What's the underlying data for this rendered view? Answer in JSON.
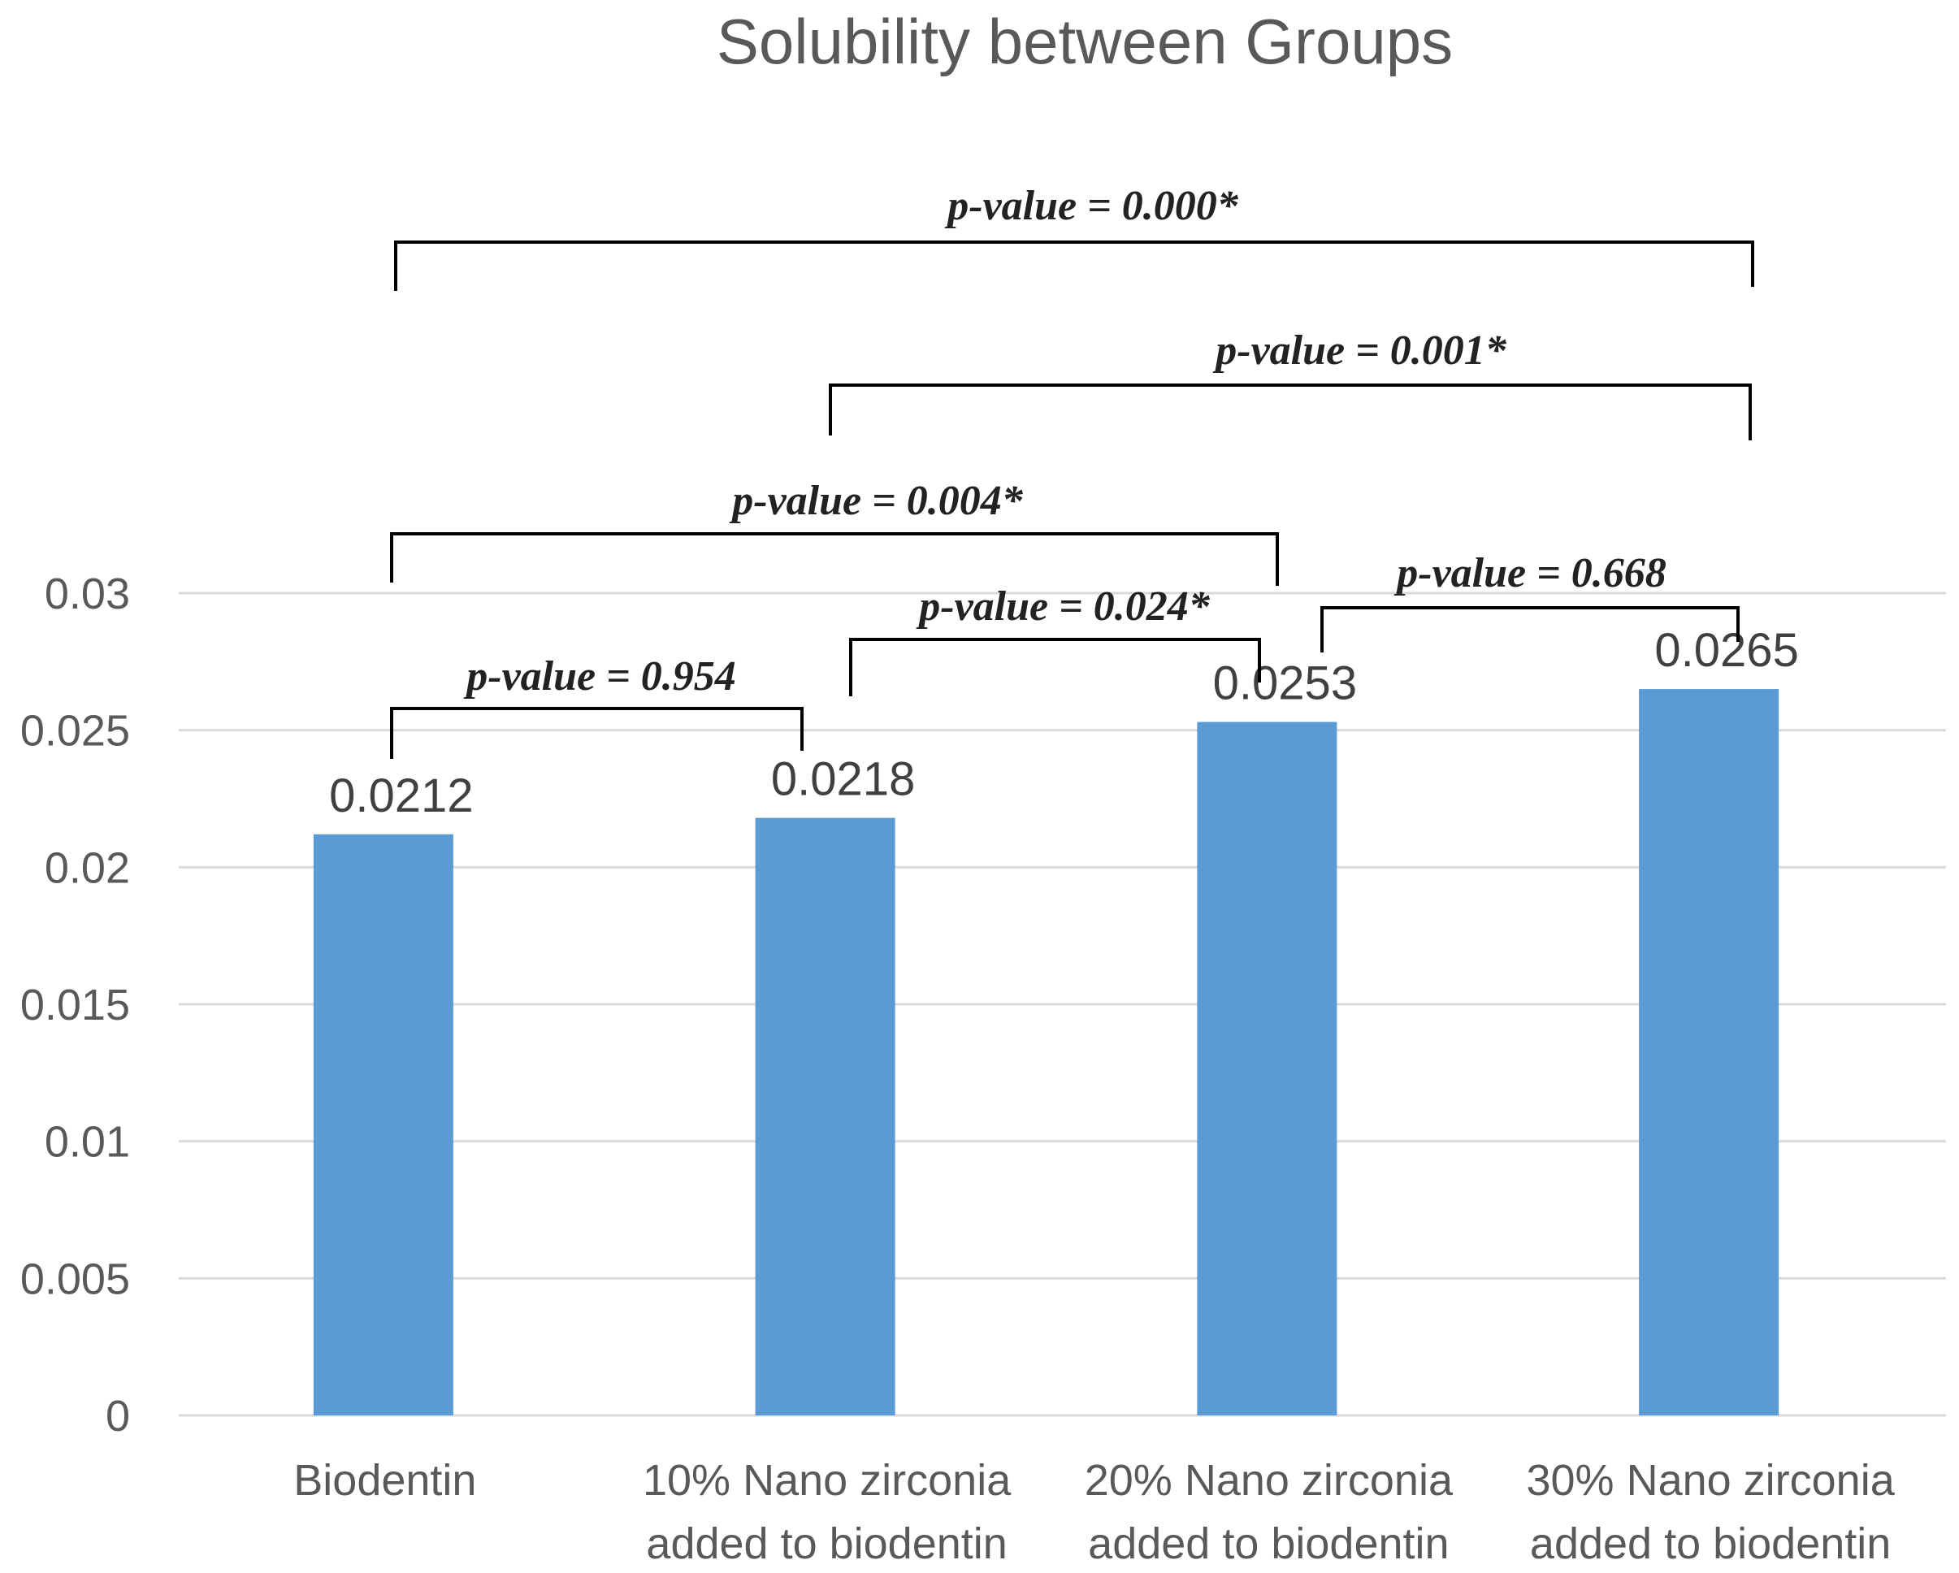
{
  "chart_data": {
    "type": "bar",
    "title": "Solubility between Groups",
    "xlabel": "",
    "ylabel": "",
    "ylim": [
      0,
      0.03
    ],
    "yticks": [
      "0",
      "0.005",
      "0.01",
      "0.015",
      "0.02",
      "0.025",
      "0.03"
    ],
    "grid": true,
    "bar_color": "#5b9bd5",
    "categories": [
      [
        "Biodentin"
      ],
      [
        "10% Nano zirconia",
        "added to biodentin"
      ],
      [
        "20% Nano zirconia",
        "added to biodentin"
      ],
      [
        "30% Nano zirconia",
        "added to biodentin"
      ]
    ],
    "values": [
      0.0212,
      0.0218,
      0.0253,
      0.0265
    ],
    "data_labels": [
      "0.0212",
      "0.0218",
      "0.0253",
      "0.0265"
    ],
    "comparisons": [
      {
        "between": [
          0,
          3
        ],
        "label": "p-value = 0.000*"
      },
      {
        "between": [
          1,
          3
        ],
        "label": "p-value = 0.001*"
      },
      {
        "between": [
          0,
          2
        ],
        "label": "p-value = 0.004*"
      },
      {
        "between": [
          2,
          3
        ],
        "label": "p-value = 0.668"
      },
      {
        "between": [
          1,
          2
        ],
        "label": "p-value = 0.024*"
      },
      {
        "between": [
          0,
          1
        ],
        "label": "p-value = 0.954"
      }
    ]
  }
}
